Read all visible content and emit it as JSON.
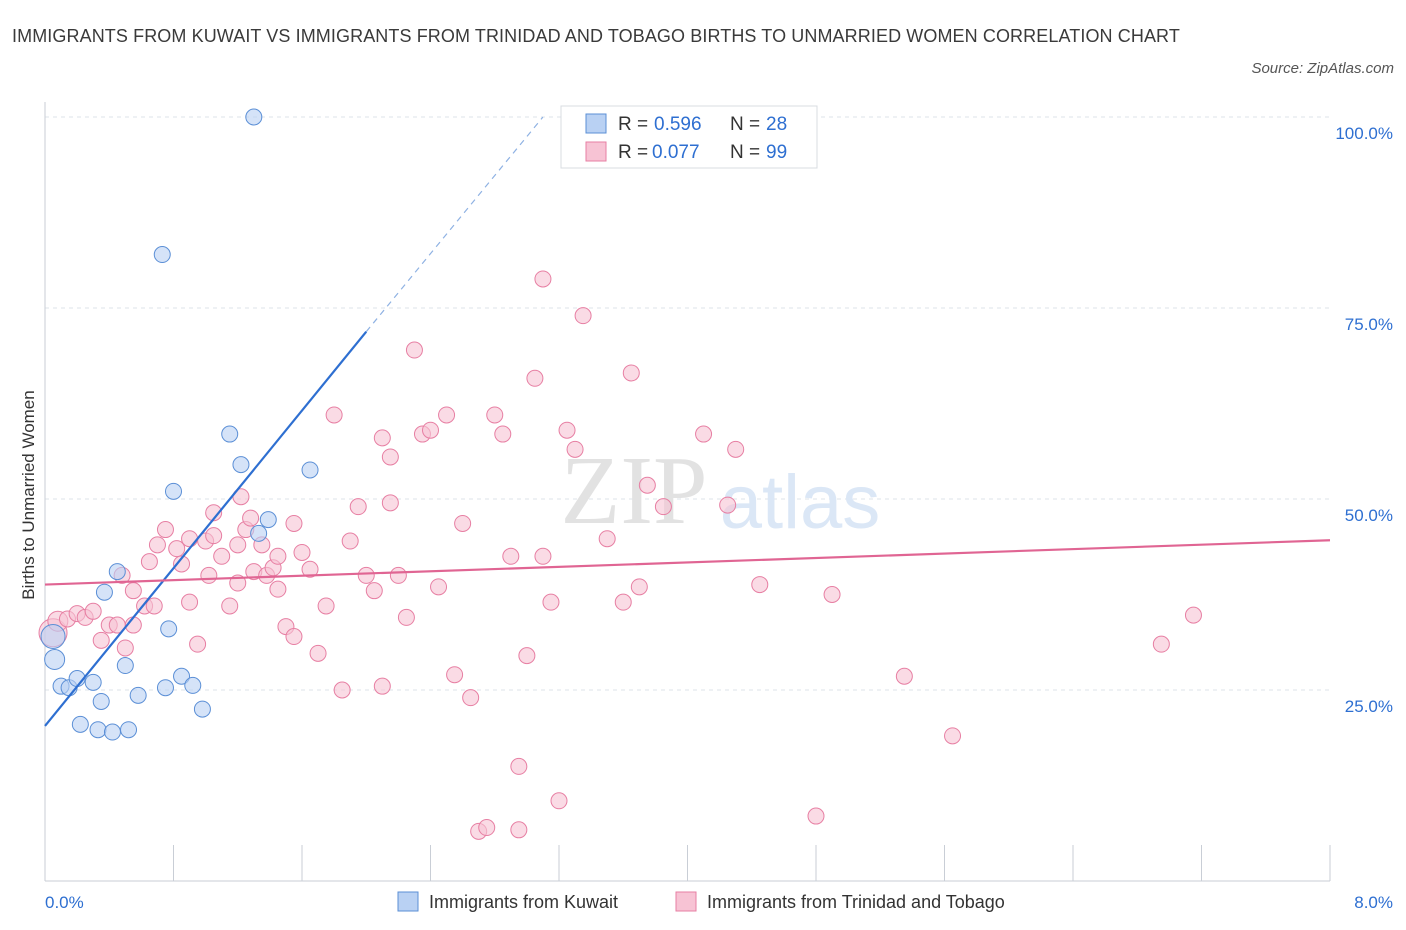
{
  "title": "IMMIGRANTS FROM KUWAIT VS IMMIGRANTS FROM TRINIDAD AND TOBAGO BIRTHS TO UNMARRIED WOMEN CORRELATION CHART",
  "source": "Source: ZipAtlas.com",
  "watermark": {
    "zip": "ZIP",
    "atlas": "atlas"
  },
  "colors": {
    "blue": "#5b8fd6",
    "blue_fill": "#b9d1f3",
    "blue_line": "#2e6fd1",
    "pink": "#e77fa3",
    "pink_fill": "#f7c3d4",
    "pink_line": "#e06593",
    "value_text": "#2e6fd1",
    "grid": "#dde3ea"
  },
  "legend_top": {
    "rows": [
      {
        "r_label": "R =",
        "r_value": "0.596",
        "n_label": "N =",
        "n_value": "28",
        "series": "blue"
      },
      {
        "r_label": "R =",
        "r_value": "0.077",
        "n_label": "N =",
        "n_value": "99",
        "series": "pink"
      }
    ]
  },
  "legend_bottom": [
    {
      "label": "Immigrants from Kuwait",
      "series": "blue"
    },
    {
      "label": "Immigrants from Trinidad and Tobago",
      "series": "pink"
    }
  ],
  "chart_data": {
    "type": "scatter",
    "title": "IMMIGRANTS FROM KUWAIT VS IMMIGRANTS FROM TRINIDAD AND TOBAGO BIRTHS TO UNMARRIED WOMEN CORRELATION CHART",
    "xlabel": "",
    "ylabel": "Births to Unmarried Women",
    "xlim": [
      0,
      8
    ],
    "ylim": [
      0,
      100
    ],
    "x_tick_labels": [
      "0.0%",
      "8.0%"
    ],
    "y_tick_labels": [
      "25.0%",
      "50.0%",
      "75.0%",
      "100.0%"
    ],
    "y_ticks": [
      25,
      50,
      75,
      100
    ],
    "grid": true,
    "legend_position": "top-center",
    "series": [
      {
        "name": "Immigrants from Kuwait",
        "color": "blue",
        "R": 0.596,
        "N": 28,
        "trend": {
          "x0": 0.0,
          "y0": 20.3,
          "x1": 2.0,
          "y1": 71.9,
          "dash_to_x": 3.1,
          "dash_to_y": 100
        },
        "points": [
          [
            0.05,
            32.0,
            12
          ],
          [
            0.06,
            29.0,
            10
          ],
          [
            0.1,
            25.5,
            8
          ],
          [
            0.15,
            25.3,
            8
          ],
          [
            0.2,
            26.5,
            8
          ],
          [
            0.3,
            26.0,
            8
          ],
          [
            0.35,
            23.5,
            8
          ],
          [
            0.22,
            20.5,
            8
          ],
          [
            0.33,
            19.8,
            8
          ],
          [
            0.42,
            19.5,
            8
          ],
          [
            0.52,
            19.8,
            8
          ],
          [
            0.37,
            37.8,
            8
          ],
          [
            0.45,
            40.5,
            8
          ],
          [
            0.58,
            24.3,
            8
          ],
          [
            0.75,
            25.3,
            8
          ],
          [
            0.77,
            33.0,
            8
          ],
          [
            0.85,
            26.8,
            8
          ],
          [
            0.92,
            25.6,
            8
          ],
          [
            0.98,
            22.5,
            8
          ],
          [
            0.5,
            28.2,
            8
          ],
          [
            0.8,
            51.0,
            8
          ],
          [
            1.15,
            58.5,
            8
          ],
          [
            1.22,
            54.5,
            8
          ],
          [
            1.33,
            45.5,
            8
          ],
          [
            1.39,
            47.3,
            8
          ],
          [
            1.65,
            53.8,
            8
          ],
          [
            0.73,
            82.0,
            8
          ],
          [
            1.3,
            100.0,
            8
          ]
        ]
      },
      {
        "name": "Immigrants from Trinidad and Tobago",
        "color": "pink",
        "R": 0.077,
        "N": 99,
        "trend": {
          "x0": 0.0,
          "y0": 38.8,
          "x1": 8.0,
          "y1": 44.6
        },
        "points": [
          [
            0.05,
            32.5,
            14
          ],
          [
            0.08,
            34.0,
            10
          ],
          [
            0.14,
            34.3,
            8
          ],
          [
            0.2,
            35.0,
            8
          ],
          [
            0.25,
            34.5,
            8
          ],
          [
            0.3,
            35.3,
            8
          ],
          [
            0.35,
            31.5,
            8
          ],
          [
            0.4,
            33.5,
            8
          ],
          [
            0.45,
            33.5,
            8
          ],
          [
            0.5,
            30.5,
            8
          ],
          [
            0.55,
            33.5,
            8
          ],
          [
            0.62,
            36.0,
            8
          ],
          [
            0.65,
            41.8,
            8
          ],
          [
            0.55,
            38.0,
            8
          ],
          [
            0.48,
            40.0,
            8
          ],
          [
            0.7,
            44.0,
            8
          ],
          [
            0.75,
            46.0,
            8
          ],
          [
            0.82,
            43.5,
            8
          ],
          [
            0.85,
            41.5,
            8
          ],
          [
            0.9,
            36.5,
            8
          ],
          [
            0.95,
            31.0,
            8
          ],
          [
            1.0,
            44.5,
            8
          ],
          [
            1.02,
            40.0,
            8
          ],
          [
            1.05,
            48.2,
            8
          ],
          [
            1.1,
            42.5,
            8
          ],
          [
            1.15,
            36.0,
            8
          ],
          [
            1.2,
            44.0,
            8
          ],
          [
            1.22,
            50.3,
            8
          ],
          [
            1.25,
            46.0,
            8
          ],
          [
            1.28,
            47.5,
            8
          ],
          [
            1.3,
            40.5,
            8
          ],
          [
            1.35,
            44.0,
            8
          ],
          [
            1.38,
            40.0,
            8
          ],
          [
            1.42,
            41.0,
            8
          ],
          [
            1.45,
            38.2,
            8
          ],
          [
            1.5,
            33.3,
            8
          ],
          [
            1.55,
            32.0,
            8
          ],
          [
            1.6,
            43.0,
            8
          ],
          [
            1.65,
            40.8,
            8
          ],
          [
            1.7,
            29.8,
            8
          ],
          [
            1.75,
            36.0,
            8
          ],
          [
            1.8,
            61.0,
            8
          ],
          [
            1.85,
            25.0,
            8
          ],
          [
            1.9,
            44.5,
            8
          ],
          [
            1.95,
            49.0,
            8
          ],
          [
            2.0,
            40.0,
            8
          ],
          [
            2.05,
            38.0,
            8
          ],
          [
            2.1,
            25.5,
            8
          ],
          [
            2.15,
            55.5,
            8
          ],
          [
            2.2,
            40.0,
            8
          ],
          [
            2.25,
            34.5,
            8
          ],
          [
            2.3,
            69.5,
            8
          ],
          [
            2.35,
            58.5,
            8
          ],
          [
            2.4,
            59.0,
            8
          ],
          [
            2.45,
            38.5,
            8
          ],
          [
            2.5,
            61.0,
            8
          ],
          [
            2.55,
            27.0,
            8
          ],
          [
            2.6,
            46.8,
            8
          ],
          [
            2.65,
            24.0,
            8
          ],
          [
            2.7,
            6.5,
            8
          ],
          [
            2.75,
            7.0,
            8
          ],
          [
            2.8,
            61.0,
            8
          ],
          [
            2.85,
            58.5,
            8
          ],
          [
            2.9,
            42.5,
            8
          ],
          [
            2.95,
            15.0,
            8
          ],
          [
            3.0,
            29.5,
            8
          ],
          [
            3.05,
            65.8,
            8
          ],
          [
            3.1,
            42.5,
            8
          ],
          [
            3.15,
            36.5,
            8
          ],
          [
            3.2,
            10.5,
            8
          ],
          [
            3.25,
            59.0,
            8
          ],
          [
            3.3,
            56.5,
            8
          ],
          [
            3.35,
            74.0,
            8
          ],
          [
            3.5,
            44.8,
            8
          ],
          [
            3.6,
            36.5,
            8
          ],
          [
            3.65,
            66.5,
            8
          ],
          [
            3.7,
            38.5,
            8
          ],
          [
            3.75,
            51.8,
            8
          ],
          [
            3.85,
            49.0,
            8
          ],
          [
            4.1,
            58.5,
            8
          ],
          [
            4.25,
            49.2,
            8
          ],
          [
            4.3,
            56.5,
            8
          ],
          [
            4.45,
            38.8,
            8
          ],
          [
            4.8,
            8.5,
            8
          ],
          [
            4.9,
            37.5,
            8
          ],
          [
            5.35,
            26.8,
            8
          ],
          [
            5.65,
            19.0,
            8
          ],
          [
            6.95,
            31.0,
            8
          ],
          [
            7.15,
            34.8,
            8
          ],
          [
            3.1,
            78.8,
            8
          ],
          [
            2.95,
            6.7,
            8
          ],
          [
            1.2,
            39.0,
            8
          ],
          [
            0.9,
            44.8,
            8
          ],
          [
            1.45,
            42.5,
            8
          ],
          [
            2.15,
            49.5,
            8
          ],
          [
            1.55,
            46.8,
            8
          ],
          [
            0.68,
            36.0,
            8
          ],
          [
            1.05,
            45.2,
            8
          ],
          [
            2.1,
            58.0,
            8
          ]
        ]
      }
    ]
  }
}
